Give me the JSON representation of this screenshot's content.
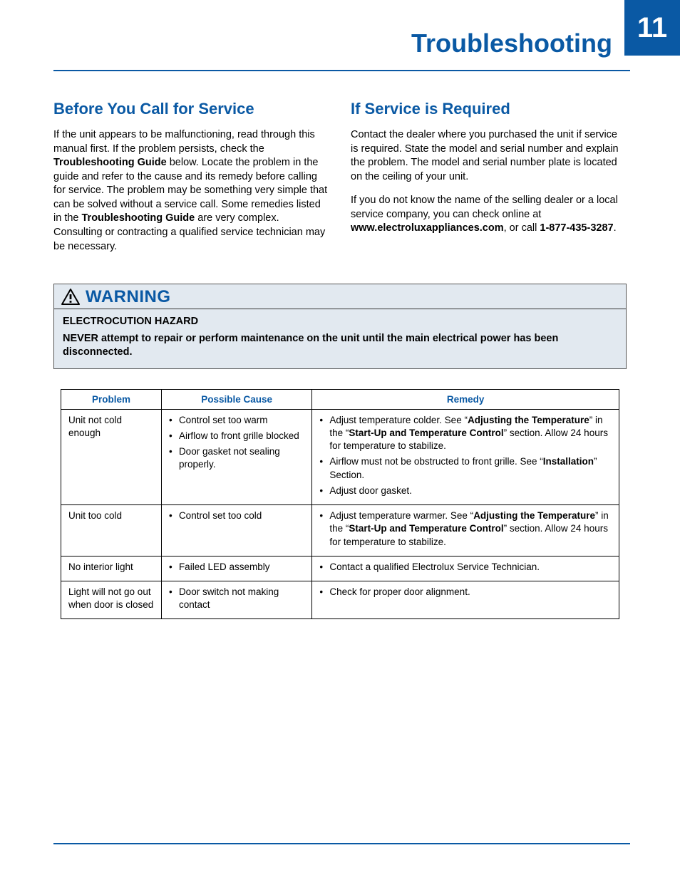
{
  "colors": {
    "brand_blue": "#0a59a4",
    "warning_bg": "#e2e9f0",
    "text": "#000000",
    "page_bg": "#ffffff",
    "border": "#000000"
  },
  "typography": {
    "body_pt": 14.5,
    "heading_pt": 22,
    "title_pt": 36,
    "page_num_pt": 40,
    "warning_label_pt": 24,
    "table_pt": 13.5
  },
  "header": {
    "title": "Troubleshooting",
    "page_number": "11"
  },
  "sections": {
    "before": {
      "heading": "Before You Call for Service",
      "p1_a": "If the unit appears to be malfunctioning, read through this manual first. If the problem persists, check the ",
      "p1_b": "Troubleshooting Guide",
      "p1_c": " below. Locate the problem in the guide and refer to the cause and its remedy before calling for service. The problem may be something very simple that can be solved without a service call. Some remedies listed in the ",
      "p1_d": "Troubleshooting Guide",
      "p1_e": " are very complex. Consulting or contracting a qualified service technician may be necessary."
    },
    "required": {
      "heading": "If Service is Required",
      "p1": "Contact the dealer where you purchased the unit if service is required. State the model and serial number and explain the problem. The model and serial number plate is located on the ceiling of your unit.",
      "p2_a": "If you do not know the name of the selling dealer or a local service company, you can check online at ",
      "p2_url": "www.electroluxappliances.com",
      "p2_b": ", or call ",
      "p2_phone": "1-877-435-3287",
      "p2_c": "."
    }
  },
  "warning": {
    "label": "WARNING",
    "hazard_title": "ELECTROCUTION HAZARD",
    "hazard_text": "NEVER attempt to repair or perform maintenance on the unit until the main electrical power has been disconnected."
  },
  "table": {
    "type": "table",
    "columns": [
      "Problem",
      "Possible Cause",
      "Remedy"
    ],
    "col_widths_pct": [
      18,
      27,
      55
    ],
    "rows": [
      {
        "problem": "Unit not cold enough",
        "causes": [
          "Control set too warm",
          "Airflow to front grille blocked",
          "Door gasket not sealing properly."
        ],
        "remedies": [
          {
            "pre": "Adjust temperature colder. See “",
            "b1": "Adjusting the Temperature",
            "mid": "” in the “",
            "b2": "Start-Up and Temperature Control",
            "post": "” section. Allow 24 hours for temperature to stabilize."
          },
          {
            "pre": "Airflow must not be obstructed to front grille. See “",
            "b1": "Installation",
            "mid": "” Section.",
            "b2": "",
            "post": ""
          },
          {
            "pre": "Adjust door gasket.",
            "b1": "",
            "mid": "",
            "b2": "",
            "post": ""
          }
        ]
      },
      {
        "problem": "Unit too cold",
        "causes": [
          "Control set too cold"
        ],
        "remedies": [
          {
            "pre": "Adjust temperature warmer. See “",
            "b1": "Adjusting the Temperature",
            "mid": "” in the “",
            "b2": "Start-Up and Temperature Control",
            "post": "” section. Allow 24 hours for temperature to stabilize."
          }
        ]
      },
      {
        "problem": "No interior light",
        "causes": [
          "Failed LED assembly"
        ],
        "remedies": [
          {
            "pre": "Contact a qualified Electrolux Service Technician.",
            "b1": "",
            "mid": "",
            "b2": "",
            "post": ""
          }
        ]
      },
      {
        "problem": "Light will not go out when door is closed",
        "causes": [
          "Door switch not making contact"
        ],
        "remedies": [
          {
            "pre": "Check for proper door alignment.",
            "b1": "",
            "mid": "",
            "b2": "",
            "post": ""
          }
        ]
      }
    ]
  }
}
